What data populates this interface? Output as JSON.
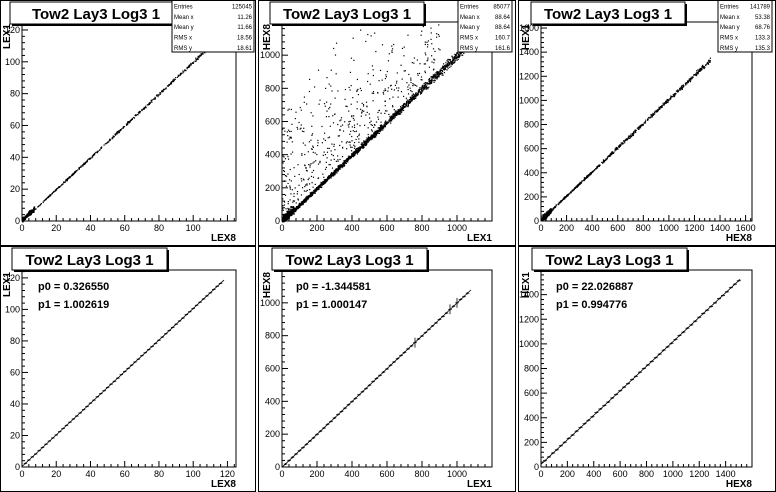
{
  "chart_data": [
    {
      "type": "scatter",
      "title": "Tow2 Lay3 Log3 1",
      "xlabel": "LEX8",
      "ylabel": "LEX1",
      "xlim": [
        0,
        125
      ],
      "ylim": [
        0,
        125
      ],
      "xticks": [
        0,
        20,
        40,
        60,
        80,
        100
      ],
      "yticks": [
        0,
        20,
        40,
        60,
        80,
        100,
        120
      ],
      "stats": [
        {
          "label": "Entries",
          "value": "125045"
        },
        {
          "label": "Mean x",
          "value": "11.26"
        },
        {
          "label": "Mean y",
          "value": "11.66"
        },
        {
          "label": "RMS x",
          "value": "18.56"
        },
        {
          "label": "RMS y",
          "value": "18.61"
        }
      ],
      "trend": {
        "x0": 0,
        "x1": 118,
        "slope": 1.0,
        "intercept": 0.3,
        "spread": 0.6
      },
      "outliers": 0,
      "n_points": 520
    },
    {
      "type": "scatter",
      "title": "Tow2 Lay3 Log3 1",
      "xlabel": "LEX1",
      "ylabel": "HEX8",
      "xlim": [
        0,
        1200
      ],
      "ylim": [
        0,
        1200
      ],
      "xticks": [
        0,
        200,
        400,
        600,
        800,
        1000
      ],
      "yticks": [
        0,
        200,
        400,
        600,
        800,
        1000
      ],
      "stats": [
        {
          "label": "Entries",
          "value": "85077"
        },
        {
          "label": "Mean x",
          "value": "88.64"
        },
        {
          "label": "Mean y",
          "value": "88.64"
        },
        {
          "label": "RMS x",
          "value": "160.7"
        },
        {
          "label": "RMS y",
          "value": "161.6"
        }
      ],
      "trend": {
        "x0": 0,
        "x1": 1080,
        "slope": 1.0,
        "intercept": 0,
        "spread": 14
      },
      "outliers": 500,
      "n_points": 2200
    },
    {
      "type": "scatter",
      "title": "Tow2 Lay3 Log3 1",
      "xlabel": "HEX8",
      "ylabel": "HEX1",
      "xlim": [
        0,
        1650
      ],
      "ylim": [
        0,
        1650
      ],
      "xticks": [
        0,
        200,
        400,
        600,
        800,
        1000,
        1200,
        1400,
        1600
      ],
      "yticks": [
        0,
        200,
        400,
        600,
        800,
        1000,
        1200,
        1400,
        1600
      ],
      "stats": [
        {
          "label": "Entries",
          "value": "141789"
        },
        {
          "label": "Mean x",
          "value": "53.38"
        },
        {
          "label": "Mean y",
          "value": "68.76"
        },
        {
          "label": "RMS x",
          "value": "133.3"
        },
        {
          "label": "RMS y",
          "value": "135.3"
        }
      ],
      "trend": {
        "x0": 0,
        "x1": 1320,
        "slope": 1.0,
        "intercept": 15,
        "spread": 10
      },
      "outliers": 0,
      "n_points": 700
    },
    {
      "type": "line",
      "title": "Tow2 Lay3 Log3 1",
      "xlabel": "LEX8",
      "ylabel": "LEX1",
      "xlim": [
        0,
        125
      ],
      "ylim": [
        0,
        125
      ],
      "xticks": [
        0,
        20,
        40,
        60,
        80,
        100,
        120
      ],
      "yticks": [
        0,
        20,
        40,
        60,
        80,
        100,
        120
      ],
      "fit": [
        {
          "label": "p0 = 0.326550"
        },
        {
          "label": "p1 = 1.002619"
        }
      ],
      "p0": 0.32655,
      "p1": 1.002619,
      "x": [
        2,
        4,
        6,
        8,
        10,
        12,
        14,
        16,
        18,
        20,
        22,
        24,
        26,
        28,
        30,
        32,
        34,
        36,
        38,
        40,
        42,
        44,
        46,
        48,
        50,
        52,
        54,
        56,
        58,
        60,
        62,
        64,
        66,
        68,
        70,
        72,
        74,
        76,
        78,
        80,
        82,
        84,
        86,
        88,
        90,
        92,
        94,
        96,
        98,
        100,
        102,
        104,
        106,
        108,
        110,
        112,
        114,
        116
      ],
      "xerr": 1.0,
      "yerr": 0.5,
      "fit_range": [
        0,
        118
      ]
    },
    {
      "type": "line",
      "title": "Tow2 Lay3 Log3 1",
      "xlabel": "LEX1",
      "ylabel": "HEX8",
      "xlim": [
        0,
        1200
      ],
      "ylim": [
        0,
        1200
      ],
      "xticks": [
        0,
        200,
        400,
        600,
        800,
        1000
      ],
      "yticks": [
        0,
        200,
        400,
        600,
        800,
        1000
      ],
      "fit": [
        {
          "label": "p0 = -1.344581"
        },
        {
          "label": "p1 = 1.000147"
        }
      ],
      "p0": -1.344581,
      "p1": 1.000147,
      "x": [
        20,
        40,
        60,
        80,
        100,
        120,
        140,
        160,
        180,
        200,
        220,
        240,
        260,
        280,
        300,
        320,
        340,
        360,
        380,
        400,
        420,
        440,
        460,
        480,
        500,
        520,
        540,
        560,
        580,
        600,
        620,
        640,
        660,
        680,
        700,
        720,
        740,
        760,
        780,
        800,
        820,
        840,
        860,
        880,
        900,
        920,
        940,
        960,
        980,
        1000,
        1020,
        1040,
        1060
      ],
      "xerr": 10,
      "yerr": 6,
      "fit_range": [
        0,
        1080
      ],
      "big_err_x": [
        760,
        960,
        1000
      ]
    },
    {
      "type": "line",
      "title": "Tow2 Lay3 Log3 1",
      "xlabel": "HEX8",
      "ylabel": "HEX1",
      "xlim": [
        0,
        1600
      ],
      "ylim": [
        0,
        1600
      ],
      "xticks": [
        0,
        200,
        400,
        600,
        800,
        1000,
        1200,
        1400
      ],
      "yticks": [
        0,
        200,
        400,
        600,
        800,
        1000,
        1200,
        1400
      ],
      "fit": [
        {
          "label": "p0 = 22.026887"
        },
        {
          "label": "p1 = 0.994776"
        }
      ],
      "p0": 22.026887,
      "p1": 0.994776,
      "x": [
        30,
        60,
        90,
        120,
        150,
        180,
        210,
        240,
        270,
        300,
        330,
        360,
        390,
        420,
        450,
        480,
        510,
        540,
        570,
        600,
        630,
        660,
        690,
        720,
        750,
        780,
        810,
        840,
        870,
        900,
        930,
        960,
        990,
        1020,
        1050,
        1080,
        1110,
        1140,
        1170,
        1200,
        1230,
        1260,
        1290,
        1320,
        1350,
        1380,
        1410,
        1440,
        1470,
        1500
      ],
      "xerr": 15,
      "yerr": 8,
      "fit_range": [
        0,
        1510
      ]
    }
  ]
}
